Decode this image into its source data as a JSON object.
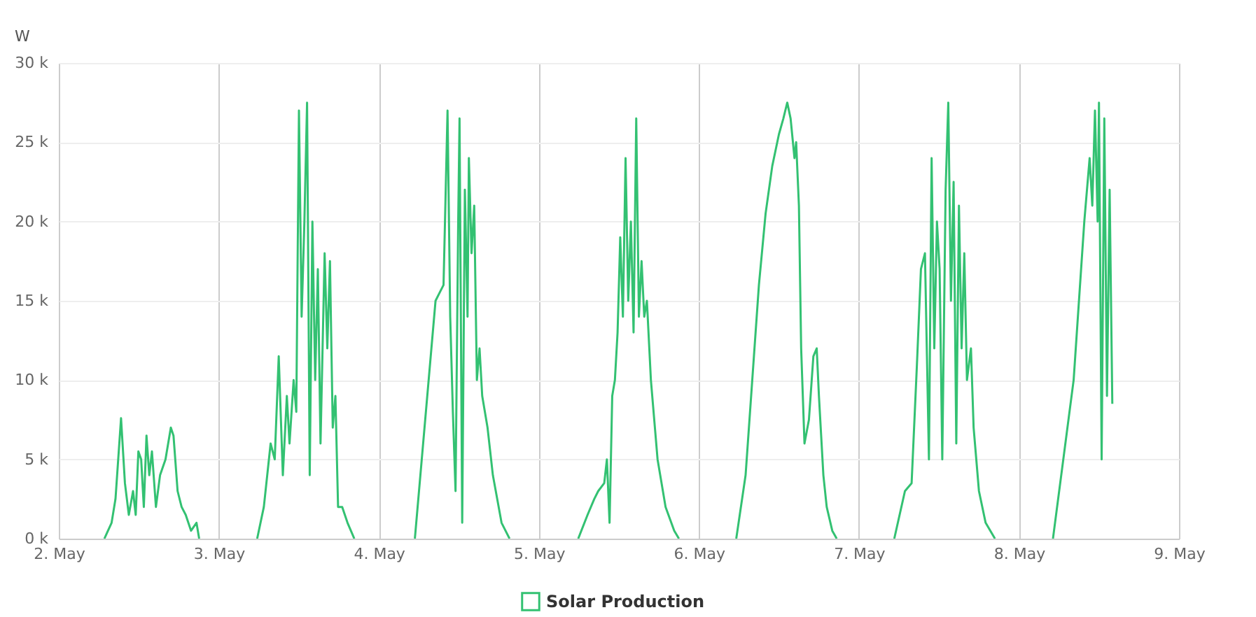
{
  "chart_data": {
    "type": "line",
    "ylabel": "W",
    "legend": "bottom",
    "grid": true,
    "line_style": "solid",
    "xlim": [
      "--05-02",
      "--05-09"
    ],
    "xticks": [
      {
        "value": "--05-02",
        "label": "2. May"
      },
      {
        "value": "--05-03",
        "label": "3. May"
      },
      {
        "value": "--05-04",
        "label": "4. May"
      },
      {
        "value": "--05-05",
        "label": "5. May"
      },
      {
        "value": "--05-06",
        "label": "6. May"
      },
      {
        "value": "--05-07",
        "label": "7. May"
      },
      {
        "value": "--05-08",
        "label": "8. May"
      },
      {
        "value": "--05-09",
        "label": "9. May"
      }
    ],
    "ylim": [
      0,
      30000
    ],
    "yticks": [
      {
        "value": 0,
        "label": "0 k"
      },
      {
        "value": 5000,
        "label": "5 k"
      },
      {
        "value": 10000,
        "label": "10 k"
      },
      {
        "value": 15000,
        "label": "15 k"
      },
      {
        "value": 20000,
        "label": "20 k"
      },
      {
        "value": 25000,
        "label": "25 k"
      },
      {
        "value": 30000,
        "label": "30 k"
      }
    ],
    "x": [
      "--05-02T06:50",
      "--05-02T07:55",
      "--05-02T08:30",
      "--05-02T09:20",
      "--05-02T09:55",
      "--05-02T10:30",
      "--05-02T11:08",
      "--05-02T11:32",
      "--05-02T11:56",
      "--05-02T12:21",
      "--05-02T12:45",
      "--05-02T13:09",
      "--05-02T13:34",
      "--05-02T13:58",
      "--05-02T14:34",
      "--05-02T15:11",
      "--05-02T16:00",
      "--05-02T16:48",
      "--05-02T17:12",
      "--05-02T17:49",
      "--05-02T18:25",
      "--05-02T19:02",
      "--05-02T19:50",
      "--05-02T20:39",
      "--05-02T21:03",
      "--05-03T00:00",
      "--05-03T05:45",
      "--05-03T06:45",
      "--05-03T07:46",
      "--05-03T08:23",
      "--05-03T08:59",
      "--05-03T09:36",
      "--05-03T10:12",
      "--05-03T10:36",
      "--05-03T11:13",
      "--05-03T11:37",
      "--05-03T12:01",
      "--05-03T12:25",
      "--05-03T12:50",
      "--05-03T13:14",
      "--05-03T13:38",
      "--05-03T14:02",
      "--05-03T14:27",
      "--05-03T14:51",
      "--05-03T15:15",
      "--05-03T15:52",
      "--05-03T16:16",
      "--05-03T16:40",
      "--05-03T17:05",
      "--05-03T17:29",
      "--05-03T17:53",
      "--05-03T18:30",
      "--05-03T19:18",
      "--05-03T20:19",
      "--05-04T00:00",
      "--05-04T05:24",
      "--05-04T08:30",
      "--05-04T09:06",
      "--05-04T09:42",
      "--05-04T10:18",
      "--05-04T10:42",
      "--05-04T11:06",
      "--05-04T11:30",
      "--05-04T11:54",
      "--05-04T12:06",
      "--05-04T12:30",
      "--05-04T12:54",
      "--05-04T13:18",
      "--05-04T13:30",
      "--05-04T13:54",
      "--05-04T14:18",
      "--05-04T14:42",
      "--05-04T15:06",
      "--05-04T15:30",
      "--05-04T16:18",
      "--05-04T17:06",
      "--05-04T18:24",
      "--05-04T19:36",
      "--05-05T00:00",
      "--05-05T05:54",
      "--05-05T07:18",
      "--05-05T08:18",
      "--05-05T08:54",
      "--05-05T09:48",
      "--05-05T10:12",
      "--05-05T10:36",
      "--05-05T11:00",
      "--05-05T11:24",
      "--05-05T11:48",
      "--05-05T12:12",
      "--05-05T12:36",
      "--05-05T13:00",
      "--05-05T13:24",
      "--05-05T13:48",
      "--05-05T14:12",
      "--05-05T14:36",
      "--05-05T15:00",
      "--05-05T15:24",
      "--05-05T15:48",
      "--05-05T16:12",
      "--05-05T16:48",
      "--05-05T17:48",
      "--05-05T19:00",
      "--05-05T20:18",
      "--05-05T21:00",
      "--05-06T00:00",
      "--05-06T05:36",
      "--05-06T07:00",
      "--05-06T08:00",
      "--05-06T09:00",
      "--05-06T10:00",
      "--05-06T11:00",
      "--05-06T12:00",
      "--05-06T12:40",
      "--05-06T13:15",
      "--05-06T13:45",
      "--05-06T14:20",
      "--05-06T14:35",
      "--05-06T15:00",
      "--05-06T15:20",
      "--05-06T15:50",
      "--05-06T16:30",
      "--05-06T17:10",
      "--05-06T17:40",
      "--05-06T18:00",
      "--05-06T18:40",
      "--05-06T19:10",
      "--05-06T20:00",
      "--05-06T20:40",
      "--05-07T00:00",
      "--05-07T05:18",
      "--05-07T06:54",
      "--05-07T07:54",
      "--05-07T08:42",
      "--05-07T09:18",
      "--05-07T09:54",
      "--05-07T10:30",
      "--05-07T10:54",
      "--05-07T11:18",
      "--05-07T11:42",
      "--05-07T12:06",
      "--05-07T12:30",
      "--05-07T13:00",
      "--05-07T13:24",
      "--05-07T13:48",
      "--05-07T14:12",
      "--05-07T14:36",
      "--05-07T15:00",
      "--05-07T15:24",
      "--05-07T15:48",
      "--05-07T16:12",
      "--05-07T16:48",
      "--05-07T17:12",
      "--05-07T18:00",
      "--05-07T19:00",
      "--05-07T20:24",
      "--05-08T00:00",
      "--05-08T05:06",
      "--05-08T08:12",
      "--05-08T09:48",
      "--05-08T10:36",
      "--05-08T11:00",
      "--05-08T11:24",
      "--05-08T11:48",
      "--05-08T12:00",
      "--05-08T12:24",
      "--05-08T12:48",
      "--05-08T13:12",
      "--05-08T13:36",
      "--05-08T14:00"
    ],
    "series": [
      {
        "name": "Solar Production",
        "color": "#33c172",
        "values": [
          0,
          1000,
          2500,
          7600,
          3500,
          1500,
          3000,
          1500,
          5500,
          5000,
          2000,
          6500,
          4000,
          5500,
          2000,
          4000,
          5000,
          7000,
          6500,
          3000,
          2000,
          1500,
          500,
          1000,
          0,
          null,
          0,
          2000,
          6000,
          5000,
          11500,
          4000,
          9000,
          6000,
          10000,
          8000,
          27000,
          14000,
          20000,
          27500,
          4000,
          20000,
          10000,
          17000,
          6000,
          18000,
          12000,
          17500,
          7000,
          9000,
          2000,
          2000,
          1000,
          0,
          null,
          0,
          15000,
          15500,
          16000,
          27000,
          14000,
          8000,
          3000,
          20000,
          26500,
          1000,
          22000,
          14000,
          24000,
          18000,
          21000,
          10000,
          12000,
          9000,
          7000,
          4000,
          1000,
          0,
          null,
          0,
          1500,
          2500,
          3000,
          3500,
          5000,
          1000,
          9000,
          10000,
          13000,
          19000,
          14000,
          24000,
          15000,
          20000,
          13000,
          26500,
          14000,
          17500,
          14000,
          15000,
          10000,
          5000,
          2000,
          500,
          0,
          null,
          0,
          4000,
          10000,
          16000,
          20500,
          23500,
          25500,
          26500,
          27500,
          26500,
          24000,
          25000,
          21000,
          12000,
          6000,
          7500,
          11500,
          12000,
          9000,
          4000,
          2000,
          500,
          0,
          null,
          0,
          3000,
          3500,
          11000,
          17000,
          18000,
          5000,
          24000,
          12000,
          20000,
          17000,
          5000,
          22000,
          27500,
          15000,
          22500,
          6000,
          21000,
          12000,
          18000,
          10000,
          12000,
          7000,
          3000,
          1000,
          0,
          null,
          0,
          10000,
          20000,
          24000,
          21000,
          27000,
          20000,
          27500,
          5000,
          26500,
          9000,
          22000,
          8500
        ]
      }
    ]
  }
}
